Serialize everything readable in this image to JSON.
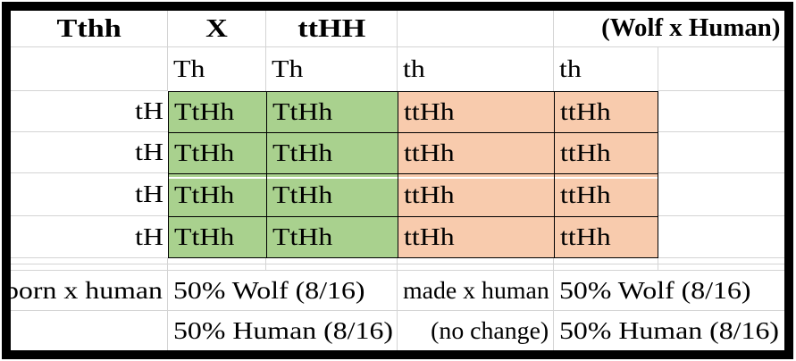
{
  "palette": {
    "punnett_green": "#a9d18e",
    "punnett_orange": "#f8cbad",
    "gridline_gray": "#d4d4d4",
    "frame_black": "#000000"
  },
  "header": {
    "parent1_genotype": "Tthh",
    "cross_symbol": "X",
    "parent2_genotype": "ttHH",
    "cross_note": "(Wolf x Human)"
  },
  "gametes": {
    "columns": [
      "Th",
      "Th",
      "th",
      "th"
    ],
    "rows": [
      "tH",
      "tH",
      "tH",
      "tH"
    ]
  },
  "punnett": {
    "rows": [
      [
        "TtHh",
        "TtHh",
        "ttHh",
        "ttHh"
      ],
      [
        "TtHh",
        "TtHh",
        "ttHh",
        "ttHh"
      ],
      [
        "TtHh",
        "TtHh",
        "ttHh",
        "ttHh"
      ],
      [
        "TtHh",
        "TtHh",
        "ttHh",
        "ttHh"
      ]
    ]
  },
  "summary": {
    "left_label": "born x human",
    "left_line1": "50% Wolf (8/16)",
    "left_line2": "50% Human (8/16)",
    "right_label": "made x human",
    "right_note": "(no change)",
    "right_line1": "50% Wolf (8/16)",
    "right_line2": "50% Human (8/16)"
  }
}
